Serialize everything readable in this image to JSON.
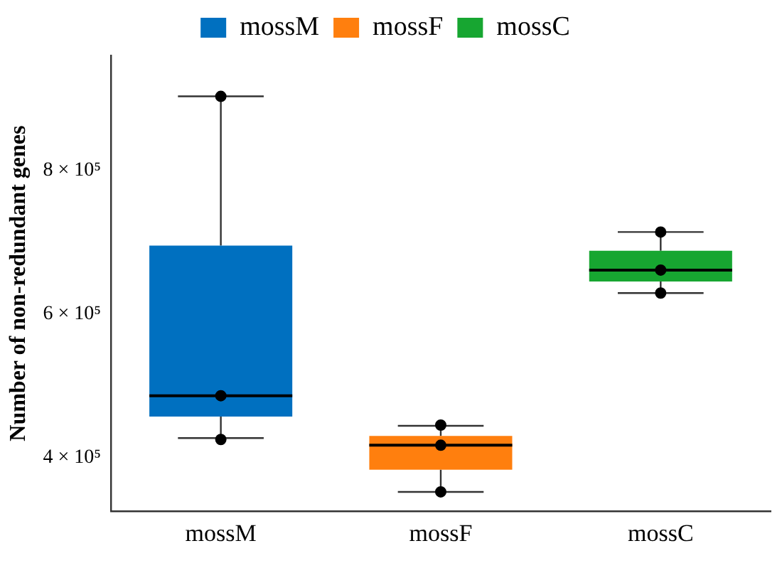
{
  "chart_data": {
    "type": "box",
    "ylabel": "Number of non-redundant genes",
    "categories": [
      "mossM",
      "mossF",
      "mossC"
    ],
    "series": [
      {
        "name": "mossM",
        "color": "#0070c0",
        "boxes": [
          {
            "low": 427000,
            "q1": 457000,
            "median": 486000,
            "q3": 695000,
            "high": 903000
          },
          null,
          null
        ]
      },
      {
        "name": "mossF",
        "color": "#ff7f0e",
        "boxes": [
          null,
          {
            "low": 352000,
            "q1": 383000,
            "median": 417000,
            "q3": 430000,
            "high": 444000
          },
          null
        ]
      },
      {
        "name": "mossC",
        "color": "#17a631",
        "boxes": [
          null,
          null,
          {
            "low": 629000,
            "q1": 645000,
            "median": 661000,
            "q3": 688000,
            "high": 714000
          }
        ]
      },
      {
        "type": "scatter",
        "x": [
          "mossM",
          "mossM",
          "mossM",
          "mossF",
          "mossF",
          "mossF",
          "mossC",
          "mossC",
          "mossC"
        ],
        "values": [
          903000,
          486000,
          425000,
          445000,
          417000,
          352000,
          714000,
          661000,
          629000
        ],
        "color": "#000000",
        "marker": "circle"
      }
    ],
    "ylim": [
      325000,
      960000
    ],
    "yticks": [
      {
        "value": 400000,
        "label": "4 × 10⁵"
      },
      {
        "value": 600000,
        "label": "6 × 10⁵"
      },
      {
        "value": 800000,
        "label": "8 × 10⁵"
      }
    ],
    "legend": "top",
    "grid": false
  }
}
